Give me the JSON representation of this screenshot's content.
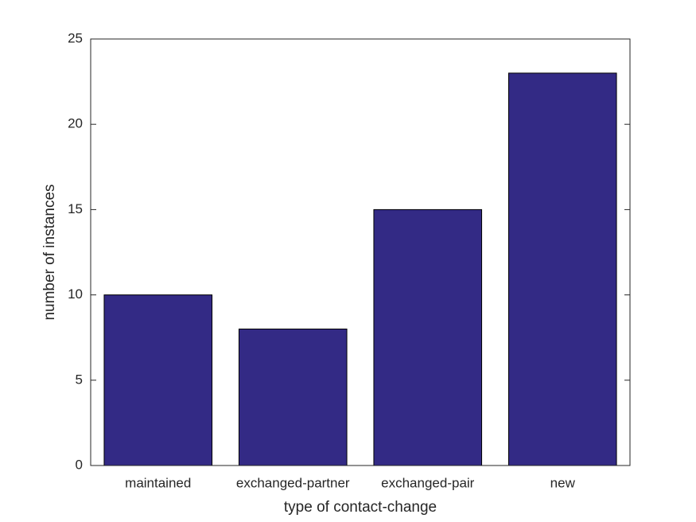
{
  "chart_data": {
    "type": "bar",
    "x_label": "type of contact-change",
    "y_label": "number of instances",
    "categories": [
      "maintained",
      "exchanged-partner",
      "exchanged-pair",
      "new"
    ],
    "values": [
      10,
      8,
      15,
      23
    ],
    "color": "#332a85",
    "ylim": [
      0,
      25
    ],
    "yticks": [
      0,
      5,
      10,
      15,
      20,
      25
    ],
    "grid": false
  }
}
